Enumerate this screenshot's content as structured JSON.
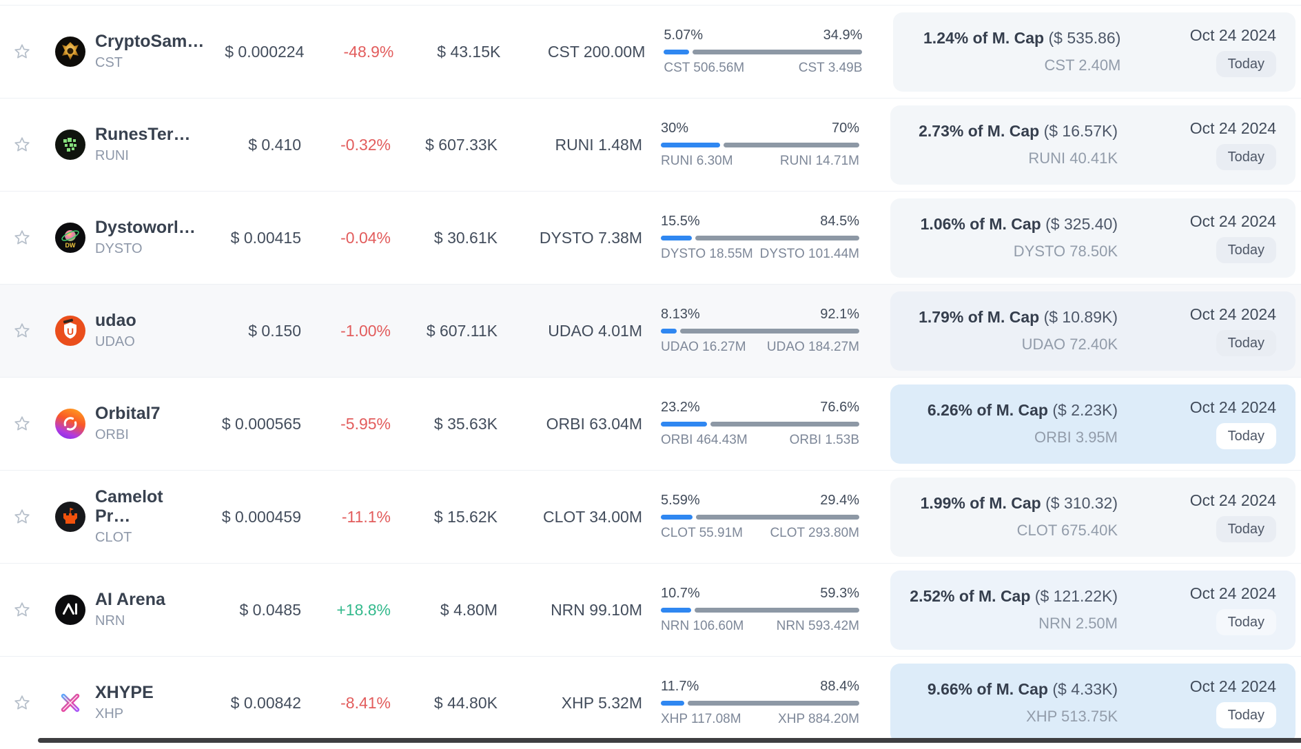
{
  "table": {
    "rows": [
      {
        "name": "CryptoSam…",
        "symbol": "CST",
        "logo": "cst",
        "price": "$ 0.000224",
        "change": "-48.9%",
        "change_dir": "down",
        "value": "$ 43.15K",
        "amount": "CST 200.00M",
        "bar": {
          "left_pct": "5.07%",
          "right_pct": "34.9%",
          "left_label": "CST 506.56M",
          "right_label": "CST 3.49B",
          "fill_pct": 12.7
        },
        "mcap_bold": "1.24% of M. Cap",
        "mcap_paren": "($ 535.86)",
        "mcap_token": "CST 2.40M",
        "date": "Oct 24 2024",
        "badge": "Today",
        "panel_tint": "gray",
        "row_alt": false
      },
      {
        "name": "RunesTer…",
        "symbol": "RUNI",
        "logo": "runi",
        "price": "$ 0.410",
        "change": "-0.32%",
        "change_dir": "down",
        "value": "$ 607.33K",
        "amount": "RUNI 1.48M",
        "bar": {
          "left_pct": "30%",
          "right_pct": "70%",
          "left_label": "RUNI 6.30M",
          "right_label": "RUNI 14.71M",
          "fill_pct": 30
        },
        "mcap_bold": "2.73% of M. Cap",
        "mcap_paren": "($ 16.57K)",
        "mcap_token": "RUNI 40.41K",
        "date": "Oct 24 2024",
        "badge": "Today",
        "panel_tint": "gray",
        "row_alt": false
      },
      {
        "name": "Dystoworl…",
        "symbol": "DYSTO",
        "logo": "dysto",
        "price": "$ 0.00415",
        "change": "-0.04%",
        "change_dir": "down",
        "value": "$ 30.61K",
        "amount": "DYSTO 7.38M",
        "bar": {
          "left_pct": "15.5%",
          "right_pct": "84.5%",
          "left_label": "DYSTO 18.55M",
          "right_label": "DYSTO 101.44M",
          "fill_pct": 15.5
        },
        "mcap_bold": "1.06% of M. Cap",
        "mcap_paren": "($ 325.40)",
        "mcap_token": "DYSTO 78.50K",
        "date": "Oct 24 2024",
        "badge": "Today",
        "panel_tint": "gray",
        "row_alt": false
      },
      {
        "name": "udao",
        "symbol": "UDAO",
        "logo": "udao",
        "price": "$ 0.150",
        "change": "-1.00%",
        "change_dir": "down",
        "value": "$ 607.11K",
        "amount": "UDAO 4.01M",
        "bar": {
          "left_pct": "8.13%",
          "right_pct": "92.1%",
          "left_label": "UDAO 16.27M",
          "right_label": "UDAO 184.27M",
          "fill_pct": 8.1
        },
        "mcap_bold": "1.79% of M. Cap",
        "mcap_paren": "($ 10.89K)",
        "mcap_token": "UDAO 72.40K",
        "date": "Oct 24 2024",
        "badge": "Today",
        "panel_tint": "gray",
        "row_alt": true
      },
      {
        "name": "Orbital7",
        "symbol": "ORBI",
        "logo": "orbi",
        "price": "$ 0.000565",
        "change": "-5.95%",
        "change_dir": "down",
        "value": "$ 35.63K",
        "amount": "ORBI 63.04M",
        "bar": {
          "left_pct": "23.2%",
          "right_pct": "76.6%",
          "left_label": "ORBI 464.43M",
          "right_label": "ORBI 1.53B",
          "fill_pct": 23.2
        },
        "mcap_bold": "6.26% of M. Cap",
        "mcap_paren": "($ 2.23K)",
        "mcap_token": "ORBI 3.95M",
        "date": "Oct 24 2024",
        "badge": "Today",
        "panel_tint": "blue",
        "row_alt": false
      },
      {
        "name": "Camelot Pr…",
        "symbol": "CLOT",
        "logo": "clot",
        "price": "$ 0.000459",
        "change": "-11.1%",
        "change_dir": "down",
        "value": "$ 15.62K",
        "amount": "CLOT 34.00M",
        "bar": {
          "left_pct": "5.59%",
          "right_pct": "29.4%",
          "left_label": "CLOT 55.91M",
          "right_label": "CLOT 293.80M",
          "fill_pct": 16
        },
        "mcap_bold": "1.99% of M. Cap",
        "mcap_paren": "($ 310.32)",
        "mcap_token": "CLOT 675.40K",
        "date": "Oct 24 2024",
        "badge": "Today",
        "panel_tint": "gray",
        "row_alt": false
      },
      {
        "name": "AI Arena",
        "symbol": "NRN",
        "logo": "nrn",
        "price": "$ 0.0485",
        "change": "+18.8%",
        "change_dir": "up",
        "value": "$ 4.80M",
        "amount": "NRN 99.10M",
        "bar": {
          "left_pct": "10.7%",
          "right_pct": "59.3%",
          "left_label": "NRN 106.60M",
          "right_label": "NRN 593.42M",
          "fill_pct": 15.3
        },
        "mcap_bold": "2.52% of M. Cap",
        "mcap_paren": "($ 121.22K)",
        "mcap_token": "NRN 2.50M",
        "date": "Oct 24 2024",
        "badge": "Today",
        "panel_tint": "lightblue",
        "row_alt": false
      },
      {
        "name": "XHYPE",
        "symbol": "XHP",
        "logo": "xhp",
        "price": "$ 0.00842",
        "change": "-8.41%",
        "change_dir": "down",
        "value": "$ 44.80K",
        "amount": "XHP 5.32M",
        "bar": {
          "left_pct": "11.7%",
          "right_pct": "88.4%",
          "left_label": "XHP 117.08M",
          "right_label": "XHP 884.20M",
          "fill_pct": 11.7
        },
        "mcap_bold": "9.66% of M. Cap",
        "mcap_paren": "($ 4.33K)",
        "mcap_token": "XHP 513.75K",
        "date": "Oct 24 2024",
        "badge": "Today",
        "panel_tint": "blue",
        "row_alt": false
      }
    ]
  },
  "colors": {
    "bar_fill": "#2f87f1",
    "bar_rest": "#8d98a5",
    "change_down": "#e25c5c",
    "change_up": "#33b98c",
    "panel_gray": "#f3f6f9",
    "panel_blue": "#ddecf9",
    "panel_lightblue": "#edf3fa",
    "row_alt_bg": "#f7f8fa",
    "scrollbar": "#3e3e41"
  }
}
